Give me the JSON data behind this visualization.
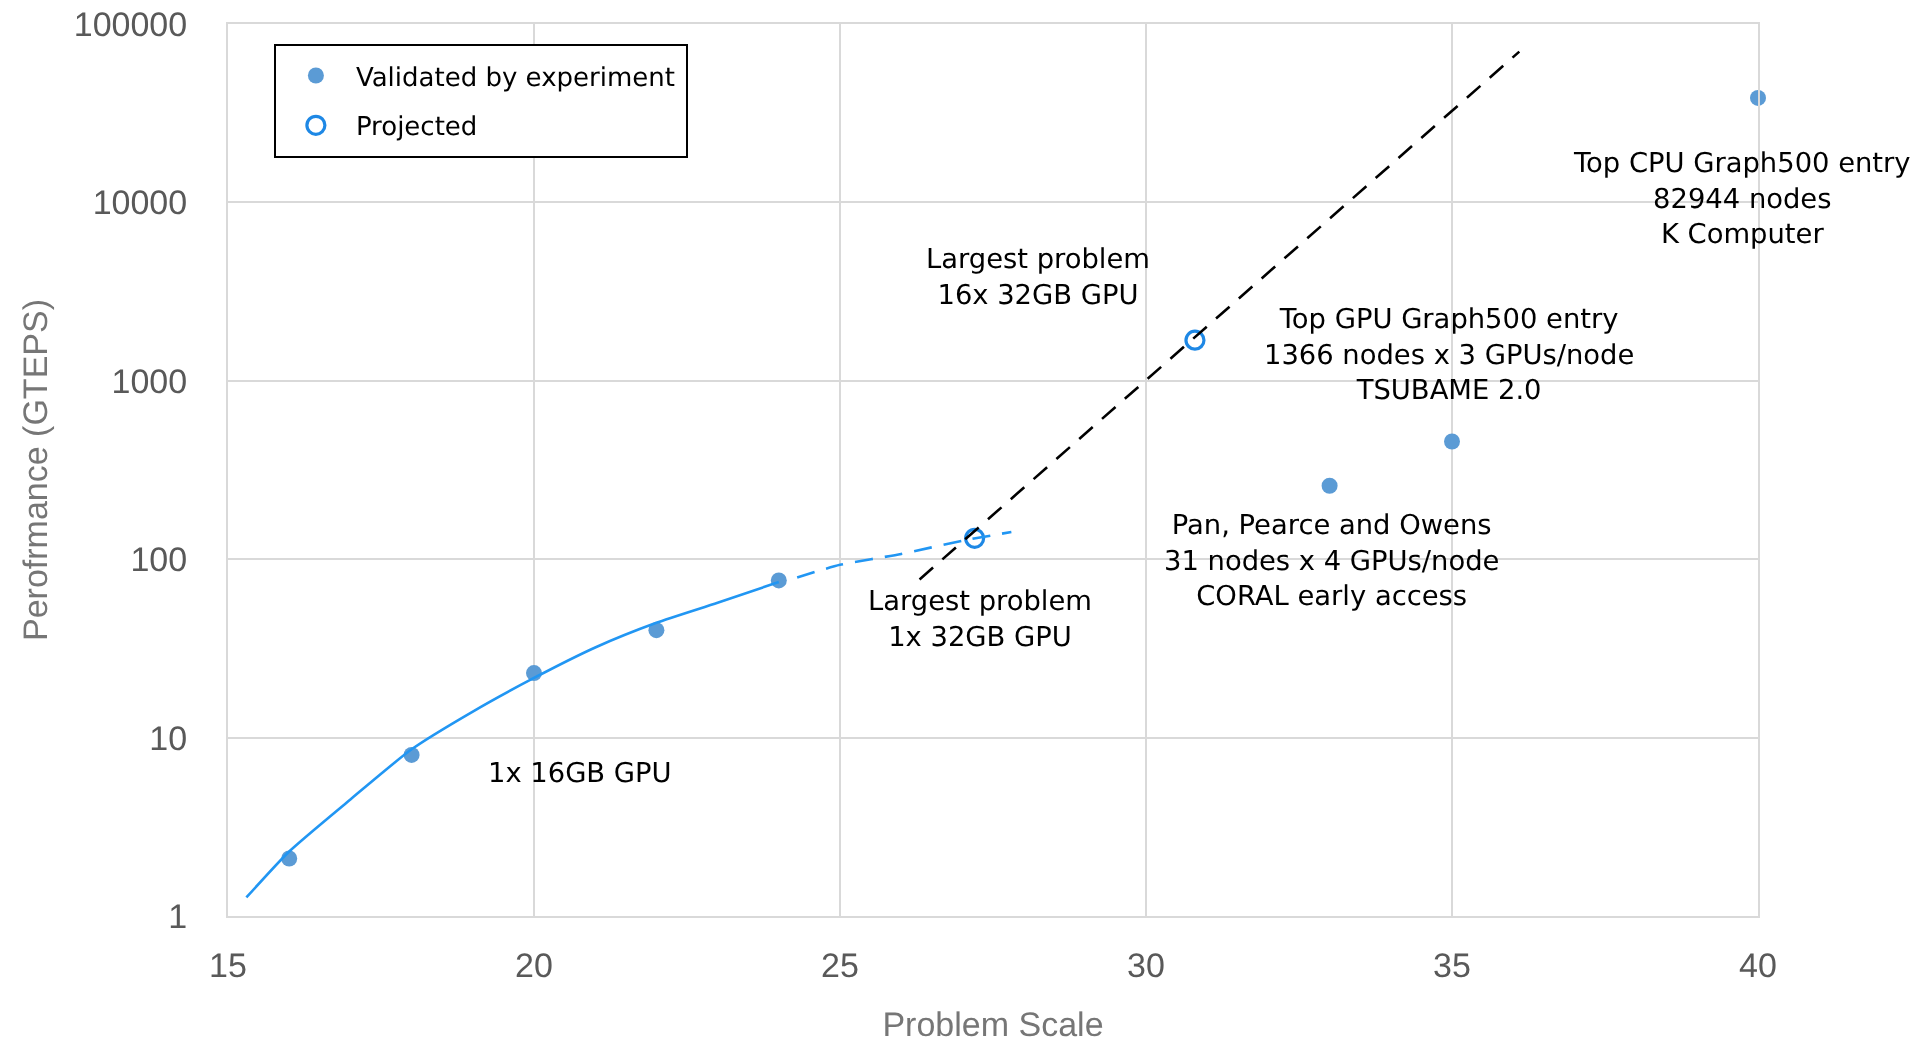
{
  "chart_data": {
    "type": "scatter",
    "xlabel": "Problem Scale",
    "ylabel": "Perofrmance (GTEPS)",
    "log": "y",
    "xlim": [
      15,
      40
    ],
    "xticks": [
      15,
      20,
      25,
      30,
      35,
      40
    ],
    "ylim": [
      1,
      100000
    ],
    "yticks": [
      1,
      10,
      100,
      1000,
      10000,
      100000
    ],
    "grid": true,
    "legend": "top left",
    "marker": "circle",
    "series": [
      {
        "name": "Validated by experiment",
        "color": "#5b9bd5",
        "x": [
          16,
          18,
          20,
          22,
          24,
          33,
          35,
          40
        ],
        "values": [
          2.1,
          8,
          23,
          40,
          76,
          258,
          457,
          38500
        ]
      },
      {
        "name": "Projected",
        "color": "#1e88e5",
        "marker": "circle-open",
        "x": [
          27.2,
          30.8
        ],
        "values": [
          131,
          1690
        ]
      },
      {
        "type": "line",
        "color": "#2196f3",
        "marker": "none",
        "line_style": "solid",
        "x": [
          15.3,
          16,
          17,
          18,
          19,
          20,
          21,
          22,
          23,
          24
        ],
        "values": [
          1.27,
          2.3,
          4.5,
          8.6,
          14,
          21.6,
          32,
          44,
          57,
          74.5
        ]
      },
      {
        "type": "line",
        "color": "#2196f3",
        "marker": "none",
        "line_style": "dashed",
        "x": [
          24.3,
          25,
          26,
          27,
          27.8
        ],
        "values": [
          79,
          93,
          107,
          127,
          142
        ]
      },
      {
        "type": "line",
        "color": "#000000",
        "marker": "none",
        "line_style": "dashed",
        "x": [
          26.3,
          36.1
        ],
        "values": [
          77,
          70000
        ]
      }
    ],
    "annotations": [
      "1x 16GB GPU",
      {
        "text": "Largest problem\n1x 32GB GPU",
        "x": 27.2,
        "y": 131
      },
      {
        "text": "Largest problem\n16x 32GB GPU",
        "x": 30.8,
        "y": 1690
      },
      {
        "text": "Top GPU Graph500 entry\n1366 nodes x 3 GPUs/node\nTSUBAME 2.0",
        "x": 35,
        "y": 457
      },
      {
        "text": "Pan, Pearce and Owens\n31 nodes x 4 GPUs/node\nCORAL early access",
        "x": 33,
        "y": 258
      },
      {
        "text": "Top CPU Graph500 entry\n82944 nodes\nK Computer",
        "x": 40,
        "y": 38500
      }
    ]
  }
}
